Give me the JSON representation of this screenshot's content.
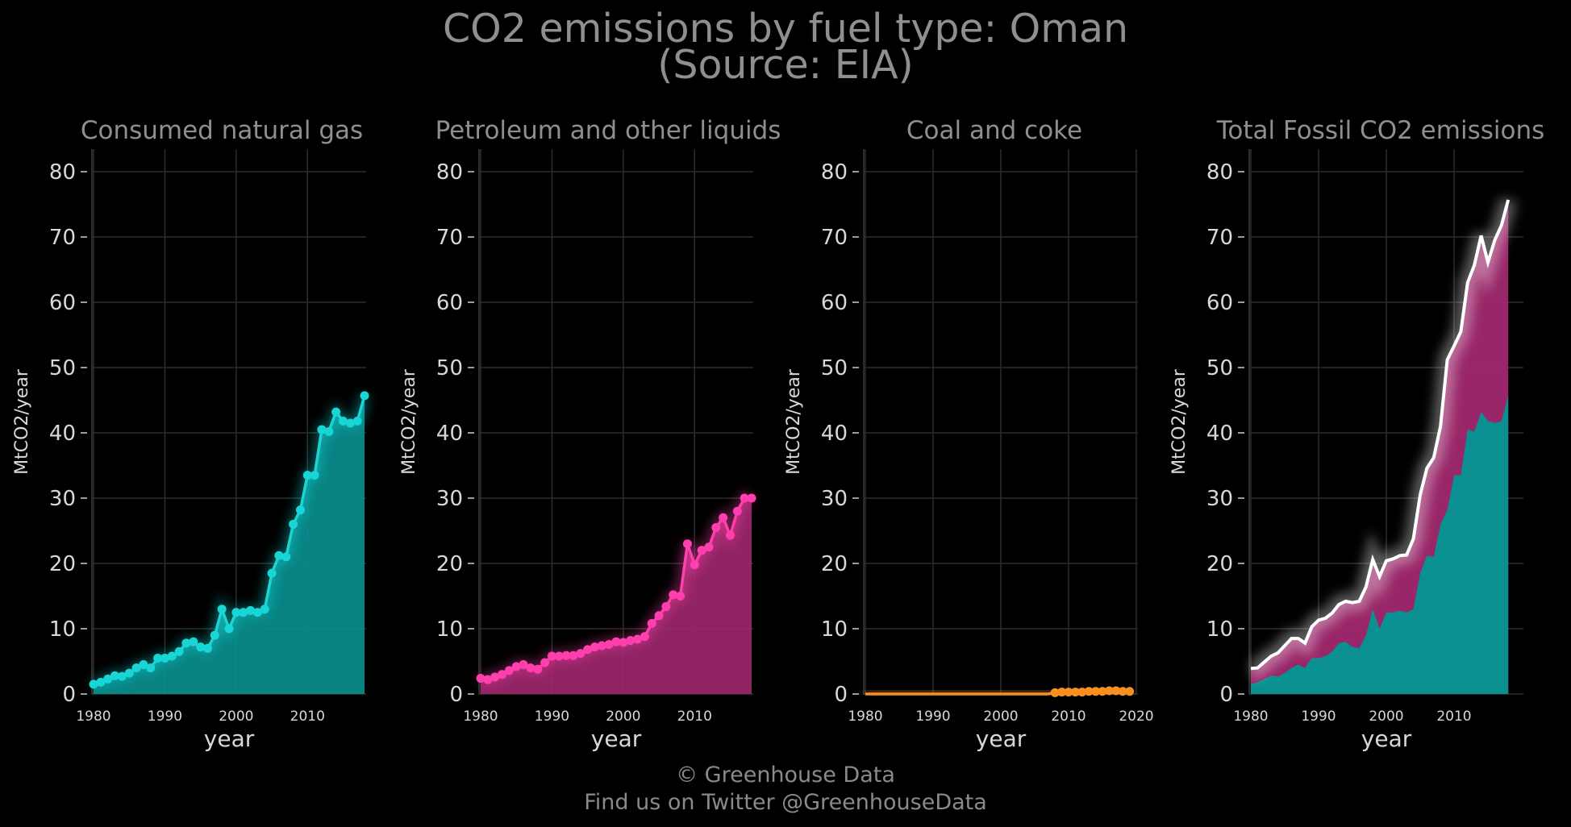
{
  "figure": {
    "title_line1": "CO2 emissions by fuel type: Oman",
    "title_line2": "(Source: EIA)",
    "footer_line1": "© Greenhouse Data",
    "footer_line2": "Find us on Twitter @GreenhouseData"
  },
  "colors": {
    "background": "#000000",
    "natural_gas": "#19d6d6",
    "natural_gas_fill": "#0a9090",
    "petroleum": "#ff3fae",
    "petroleum_fill": "#a0286e",
    "coal": "#f7901e",
    "total_line": "#ffffff",
    "grid": "#2c2c2c",
    "text": "#8a8a8a"
  },
  "chart_data": [
    {
      "type": "line",
      "title": "Consumed natural gas",
      "xlabel": "year",
      "ylabel": "MtCO2/year",
      "xlim": [
        1980,
        2018
      ],
      "ylim": [
        0,
        80
      ],
      "xticks": [
        1980,
        1990,
        2000,
        2010
      ],
      "yticks": [
        0,
        10,
        20,
        30,
        40,
        50,
        60,
        70,
        80
      ],
      "grid": true,
      "style": "area-with-markers",
      "series": [
        {
          "x": [
            1980,
            1981,
            1982,
            1983,
            1984,
            1985,
            1986,
            1987,
            1988,
            1989,
            1990,
            1991,
            1992,
            1993,
            1994,
            1995,
            1996,
            1997,
            1998,
            1999,
            2000,
            2001,
            2002,
            2003,
            2004,
            2005,
            2006,
            2007,
            2008,
            2009,
            2010,
            2011,
            2012,
            2013,
            2014,
            2015,
            2016,
            2017,
            2018
          ],
          "values": [
            1.5,
            1.8,
            2.3,
            2.8,
            2.7,
            3.2,
            4.0,
            4.5,
            4.0,
            5.5,
            5.5,
            5.8,
            6.5,
            7.8,
            8.0,
            7.2,
            7.0,
            9.0,
            13.0,
            10.0,
            12.5,
            12.5,
            12.8,
            12.5,
            13.0,
            18.5,
            21.2,
            21.0,
            26.0,
            28.2,
            33.5,
            33.5,
            40.5,
            40.2,
            43.2,
            41.8,
            41.5,
            41.8,
            45.7
          ]
        }
      ]
    },
    {
      "type": "line",
      "title": "Petroleum and other liquids",
      "xlabel": "year",
      "ylabel": "MtCO2/year",
      "xlim": [
        1980,
        2018
      ],
      "ylim": [
        0,
        80
      ],
      "xticks": [
        1980,
        1990,
        2000,
        2010
      ],
      "yticks": [
        0,
        10,
        20,
        30,
        40,
        50,
        60,
        70,
        80
      ],
      "grid": true,
      "style": "area-with-markers",
      "series": [
        {
          "x": [
            1980,
            1981,
            1982,
            1983,
            1984,
            1985,
            1986,
            1987,
            1988,
            1989,
            1990,
            1991,
            1992,
            1993,
            1994,
            1995,
            1996,
            1997,
            1998,
            1999,
            2000,
            2001,
            2002,
            2003,
            2004,
            2005,
            2006,
            2007,
            2008,
            2009,
            2010,
            2011,
            2012,
            2013,
            2014,
            2015,
            2016,
            2017,
            2018
          ],
          "values": [
            2.4,
            2.2,
            2.6,
            3.0,
            3.6,
            4.2,
            4.5,
            4.0,
            3.8,
            4.8,
            5.8,
            5.8,
            5.9,
            5.9,
            6.2,
            6.8,
            7.2,
            7.4,
            7.6,
            8.0,
            7.9,
            8.2,
            8.4,
            8.8,
            10.8,
            12.0,
            13.4,
            15.2,
            15.0,
            23.0,
            19.8,
            22.0,
            22.5,
            25.5,
            27.0,
            24.3,
            28.0,
            30.0,
            30.0
          ]
        }
      ]
    },
    {
      "type": "line",
      "title": "Coal and coke",
      "xlabel": "year",
      "ylabel": "MtCO2/year",
      "xlim": [
        1980,
        2020
      ],
      "ylim": [
        0,
        80
      ],
      "xticks": [
        1980,
        1990,
        2000,
        2010,
        2020
      ],
      "yticks": [
        0,
        10,
        20,
        30,
        40,
        50,
        60,
        70,
        80
      ],
      "grid": true,
      "style": "area-with-markers",
      "series": [
        {
          "x": [
            1980,
            2007,
            2008,
            2009,
            2010,
            2011,
            2012,
            2013,
            2014,
            2015,
            2016,
            2017,
            2018,
            2019
          ],
          "values": [
            0,
            0,
            0.2,
            0.3,
            0.3,
            0.3,
            0.3,
            0.4,
            0.4,
            0.4,
            0.5,
            0.5,
            0.4,
            0.4
          ],
          "markers_from": 2008
        }
      ]
    },
    {
      "type": "area",
      "title": "Total Fossil CO2 emissions",
      "xlabel": "year",
      "ylabel": "MtCO2/year",
      "xlim": [
        1980,
        2020
      ],
      "ylim": [
        0,
        80
      ],
      "xticks": [
        1980,
        1990,
        2000,
        2010
      ],
      "yticks": [
        0,
        10,
        20,
        30,
        40,
        50,
        60,
        70,
        80
      ],
      "grid": true,
      "stacked": true,
      "series_ref": [
        "natural_gas",
        "petroleum",
        "total"
      ]
    }
  ]
}
